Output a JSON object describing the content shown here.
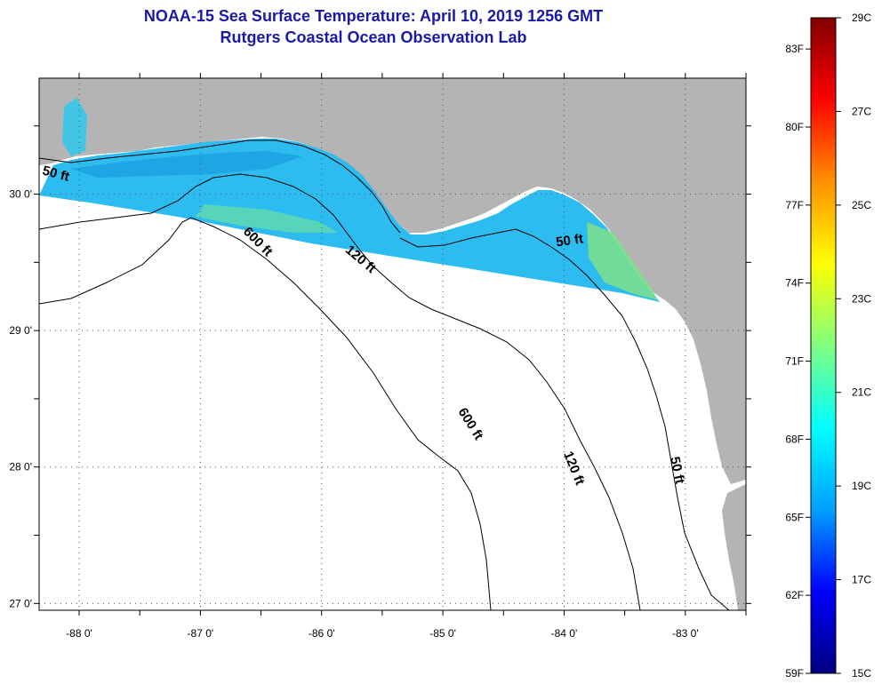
{
  "header": {
    "title": "NOAA-15 Sea Surface Temperature:  April 10, 2019 1256 GMT",
    "subtitle": "Rutgers Coastal Ocean Observation Lab"
  },
  "map": {
    "lon_range": [
      -88.33,
      -82.5
    ],
    "lat_range": [
      26.95,
      30.85
    ],
    "lon_ticks": [
      {
        "value": -88,
        "label": "-88 0'"
      },
      {
        "value": -87,
        "label": "-87 0'"
      },
      {
        "value": -86,
        "label": "-86 0'"
      },
      {
        "value": -85,
        "label": "-85 0'"
      },
      {
        "value": -84,
        "label": "-84 0'"
      },
      {
        "value": -83,
        "label": "-83 0'"
      }
    ],
    "lat_ticks": [
      {
        "value": 30,
        "label": "30 0'"
      },
      {
        "value": 29,
        "label": "29 0'"
      },
      {
        "value": 28,
        "label": "28 0'"
      },
      {
        "value": 27,
        "label": "27 0'"
      }
    ],
    "contour_labels": [
      {
        "text": "50 ft",
        "lon": -88.2,
        "lat": 30.12,
        "angle": 15
      },
      {
        "text": "600 ft",
        "lon": -86.55,
        "lat": 29.63,
        "angle": 45
      },
      {
        "text": "120 ft",
        "lon": -85.7,
        "lat": 29.5,
        "angle": 40
      },
      {
        "text": "50 ft",
        "lon": -83.95,
        "lat": 29.63,
        "angle": -8
      },
      {
        "text": "600 ft",
        "lon": -84.8,
        "lat": 28.3,
        "angle": 58
      },
      {
        "text": "120 ft",
        "lon": -83.95,
        "lat": 27.98,
        "angle": 68
      },
      {
        "text": "50 ft",
        "lon": -83.1,
        "lat": 27.97,
        "angle": 78
      }
    ],
    "colors": {
      "land": "#b4b4b4",
      "ocean": "#ffffff",
      "sst_main": "#22b8ee",
      "sst_warm": "#7ee08a"
    }
  },
  "colorbar": {
    "celsius_labels": [
      {
        "value": 29,
        "label": "29C"
      },
      {
        "value": 27,
        "label": "27C"
      },
      {
        "value": 25,
        "label": "25C"
      },
      {
        "value": 23,
        "label": "23C"
      },
      {
        "value": 21,
        "label": "21C"
      },
      {
        "value": 19,
        "label": "19C"
      },
      {
        "value": 17,
        "label": "17C"
      },
      {
        "value": 15,
        "label": "15C"
      }
    ],
    "fahrenheit_labels": [
      {
        "value": 83,
        "label": "83F"
      },
      {
        "value": 80,
        "label": "80F"
      },
      {
        "value": 77,
        "label": "77F"
      },
      {
        "value": 74,
        "label": "74F"
      },
      {
        "value": 71,
        "label": "71F"
      },
      {
        "value": 68,
        "label": "68F"
      },
      {
        "value": 65,
        "label": "65F"
      },
      {
        "value": 62,
        "label": "62F"
      },
      {
        "value": 59,
        "label": "59F"
      }
    ],
    "range_c": [
      15,
      29
    ],
    "colormap": [
      "#000080",
      "#0000ff",
      "#00a0ff",
      "#00ffff",
      "#80ff80",
      "#ffff00",
      "#ff9000",
      "#ff0000",
      "#800000"
    ]
  }
}
